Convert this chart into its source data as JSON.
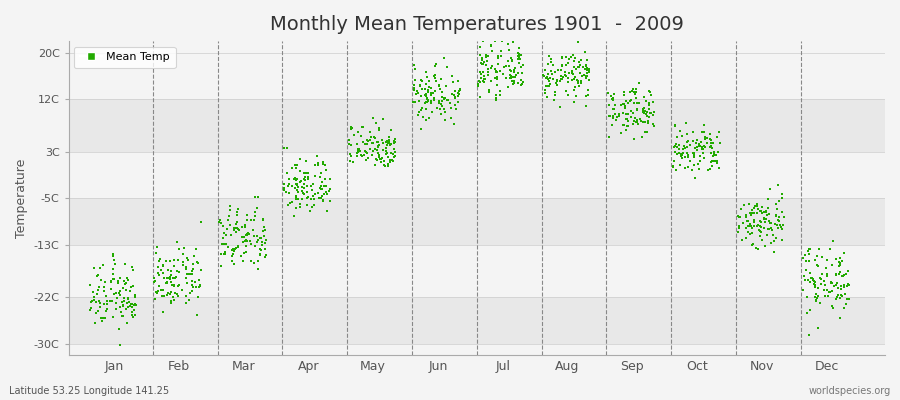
{
  "title": "Monthly Mean Temperatures 1901  -  2009",
  "ylabel": "Temperature",
  "xlabel_bottom_left": "Latitude 53.25 Longitude 141.25",
  "xlabel_bottom_right": "worldspecies.org",
  "yticks": [
    -30,
    -22,
    -13,
    -5,
    3,
    12,
    20
  ],
  "ytick_labels": [
    "-30C",
    "-22C",
    "-13C",
    "-5C",
    "3C",
    "12C",
    "20C"
  ],
  "ylim": [
    -32,
    22
  ],
  "months": [
    "Jan",
    "Feb",
    "Mar",
    "Apr",
    "May",
    "Jun",
    "Jul",
    "Aug",
    "Sep",
    "Oct",
    "Nov",
    "Dec"
  ],
  "dot_color": "#22aa00",
  "background_color": "#f4f4f4",
  "band_color_light": "#f4f4f4",
  "band_color_dark": "#e8e8e8",
  "grid_color": "#888888",
  "monthly_means": [
    -22,
    -19,
    -12,
    -3,
    4,
    13,
    17,
    16,
    10,
    3,
    -9,
    -19
  ],
  "monthly_stds": [
    2.8,
    2.5,
    2.8,
    2.5,
    2.0,
    2.5,
    2.0,
    2.0,
    2.0,
    2.2,
    2.5,
    3.0
  ],
  "n_years": 109,
  "seed": 12345,
  "marker_size": 3,
  "legend_label": "Mean Temp",
  "xlim_left": -0.3,
  "xlim_right": 12.3,
  "title_fontsize": 14
}
